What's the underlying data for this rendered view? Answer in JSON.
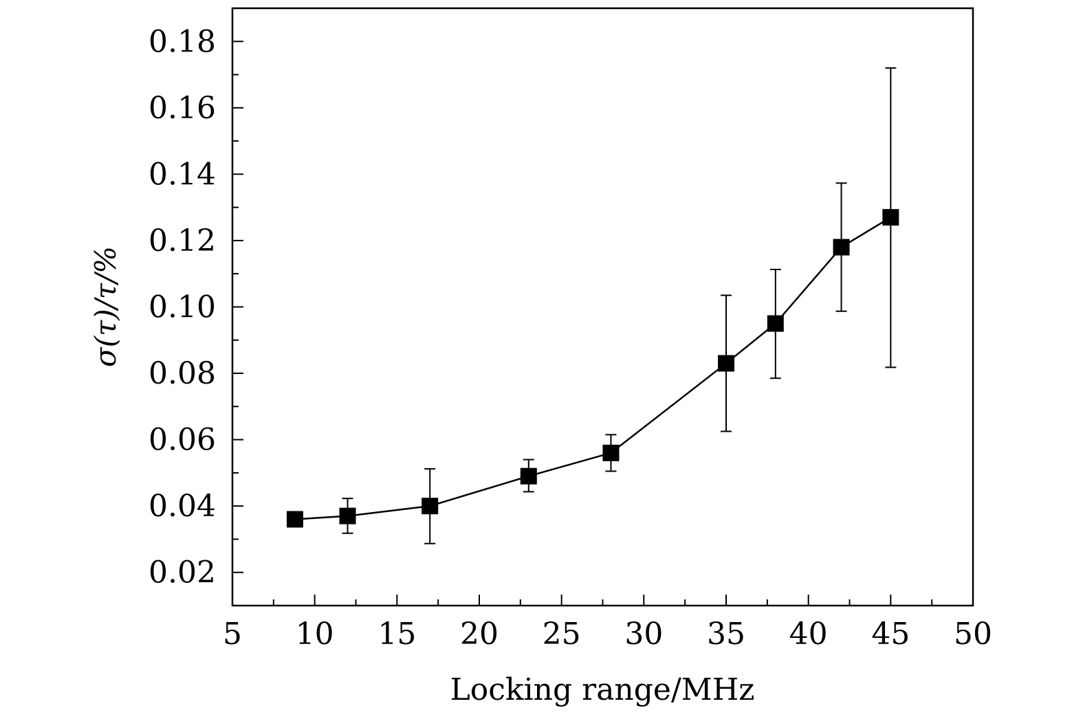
{
  "chart_data": {
    "type": "line",
    "title": "",
    "xlabel": "Locking range/MHz",
    "ylabel": "σ(τ)/τ/%",
    "xlim": [
      5,
      50
    ],
    "ylim": [
      0.01,
      0.19
    ],
    "xticks": [
      5,
      10,
      15,
      20,
      25,
      30,
      35,
      40,
      45,
      50
    ],
    "xtick_labels": [
      "5",
      "10",
      "15",
      "20",
      "25",
      "30",
      "35",
      "40",
      "45",
      "50"
    ],
    "yticks": [
      0.02,
      0.04,
      0.06,
      0.08,
      0.1,
      0.12,
      0.14,
      0.16,
      0.18
    ],
    "ytick_labels": [
      "0.02",
      "0.04",
      "0.06",
      "0.08",
      "0.10",
      "0.12",
      "0.14",
      "0.16",
      "0.18"
    ],
    "grid": false,
    "marker": "square",
    "color": "#000000",
    "series": [
      {
        "name": "σ(τ)/τ",
        "x": [
          8.8,
          12,
          17,
          23,
          28,
          35,
          38,
          42,
          45
        ],
        "y": [
          0.036,
          0.037,
          0.04,
          0.049,
          0.056,
          0.083,
          0.095,
          0.118,
          0.127
        ],
        "err_low": [
          0.036,
          0.0318,
          0.0287,
          0.0443,
          0.0505,
          0.0625,
          0.0785,
          0.0987,
          0.0818
        ],
        "err_high": [
          0.036,
          0.0423,
          0.0512,
          0.054,
          0.0615,
          0.1035,
          0.1113,
          0.1373,
          0.172
        ]
      }
    ]
  }
}
